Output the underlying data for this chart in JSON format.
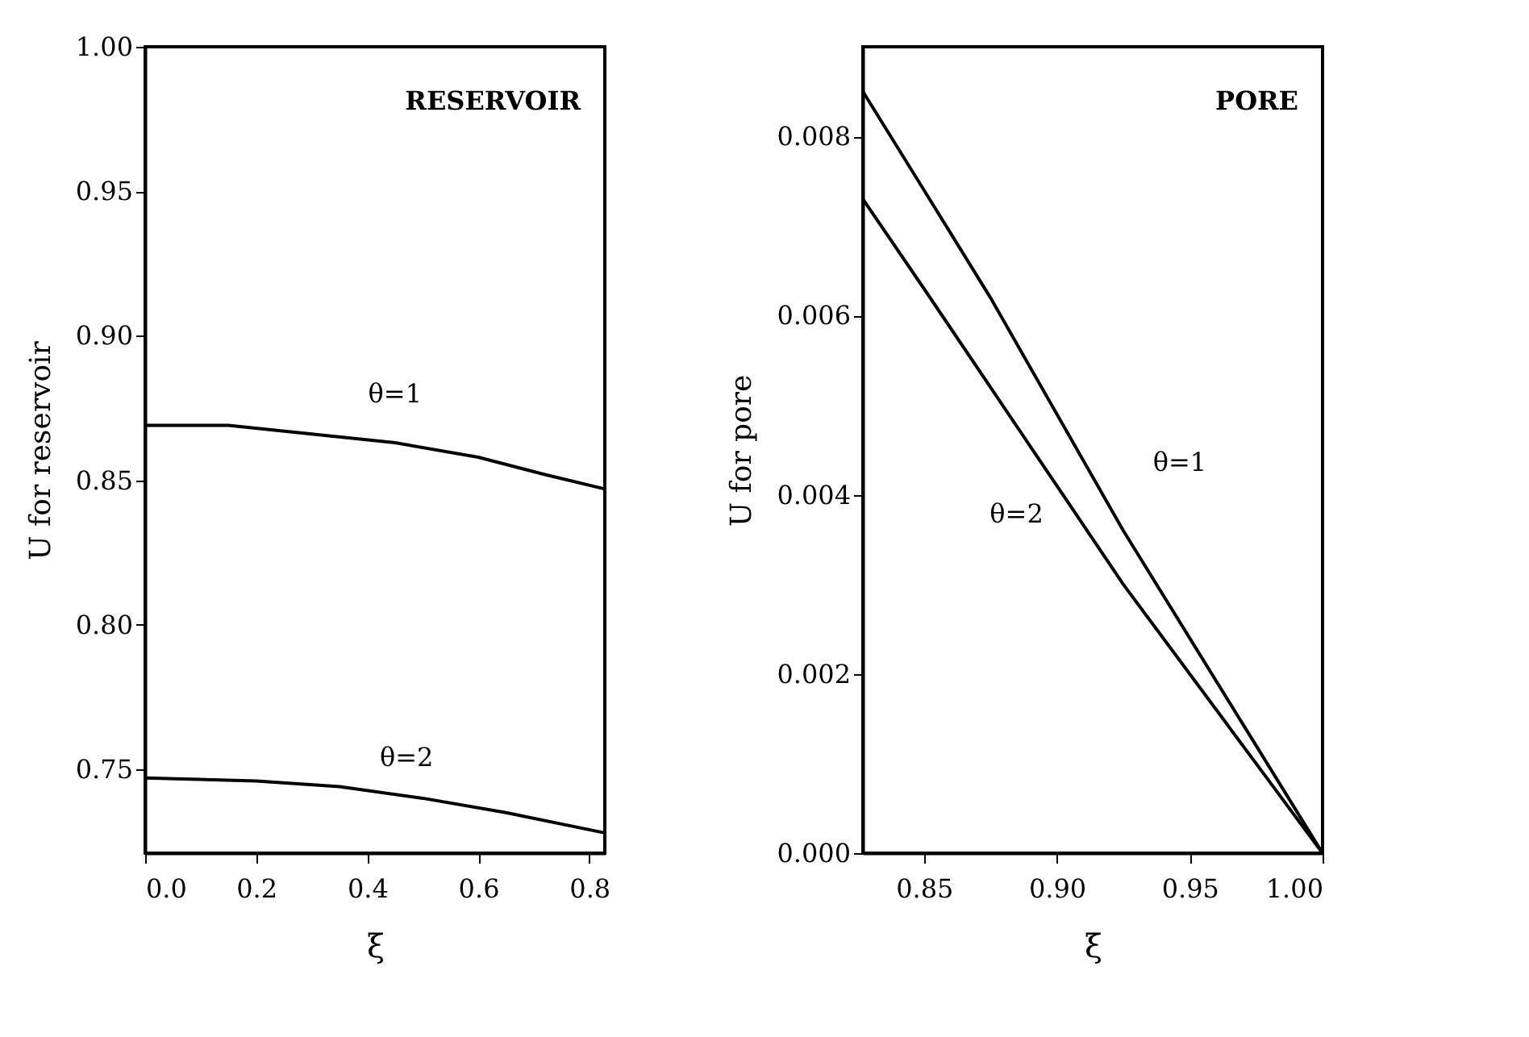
{
  "chart_data": [
    {
      "type": "line",
      "xlabel": "ξ",
      "ylabel": "U for reservoir",
      "xlim": [
        0,
        0.828
      ],
      "ylim": [
        0.721,
        1.0
      ],
      "xticks": [
        {
          "value": 0,
          "label": "0.0"
        },
        {
          "value": 0.2,
          "label": "0.2"
        },
        {
          "value": 0.4,
          "label": "0.4"
        },
        {
          "value": 0.6,
          "label": "0.6"
        },
        {
          "value": 0.8,
          "label": "0.8"
        }
      ],
      "yticks": [
        {
          "value": 0.75,
          "label": "0.75"
        },
        {
          "value": 0.8,
          "label": "0.80"
        },
        {
          "value": 0.85,
          "label": "0.85"
        },
        {
          "value": 0.9,
          "label": "0.90"
        },
        {
          "value": 0.95,
          "label": "0.95"
        },
        {
          "value": 1.0,
          "label": "1.00"
        }
      ],
      "grid": false,
      "marker": "none",
      "line_style": "solid",
      "series": [
        {
          "name": "θ=1",
          "color": "#000000",
          "x": [
            0,
            0.15,
            0.3,
            0.45,
            0.6,
            0.72,
            0.828
          ],
          "values": [
            0.869,
            0.869,
            0.866,
            0.863,
            0.858,
            0.852,
            0.847
          ]
        },
        {
          "name": "θ=2",
          "color": "#000000",
          "x": [
            0,
            0.2,
            0.35,
            0.5,
            0.65,
            0.828
          ],
          "values": [
            0.747,
            0.746,
            0.744,
            0.74,
            0.735,
            0.728
          ]
        }
      ],
      "annotations": [
        "RESERVOIR"
      ]
    },
    {
      "type": "line",
      "xlabel": "ξ",
      "ylabel": "U for pore",
      "xlim": [
        0.827,
        1.0
      ],
      "ylim": [
        0,
        0.009
      ],
      "xticks": [
        {
          "value": 0.85,
          "label": "0.85"
        },
        {
          "value": 0.9,
          "label": "0.90"
        },
        {
          "value": 0.95,
          "label": "0.95"
        },
        {
          "value": 1.0,
          "label": "1.00"
        }
      ],
      "yticks": [
        {
          "value": 0,
          "label": "0.000"
        },
        {
          "value": 0.002,
          "label": "0.002"
        },
        {
          "value": 0.004,
          "label": "0.004"
        },
        {
          "value": 0.006,
          "label": "0.006"
        },
        {
          "value": 0.008,
          "label": "0.008"
        }
      ],
      "grid": false,
      "marker": "none",
      "line_style": "solid",
      "series": [
        {
          "name": "θ=1",
          "color": "#000000",
          "x": [
            0.827,
            0.85,
            0.875,
            0.9,
            0.925,
            0.95,
            0.975,
            1.0
          ],
          "values": [
            0.0085,
            0.0074,
            0.0062,
            0.0049,
            0.0036,
            0.0024,
            0.0012,
            0
          ]
        },
        {
          "name": "θ=2",
          "color": "#000000",
          "x": [
            0.827,
            0.85,
            0.875,
            0.9,
            0.925,
            0.95,
            0.975,
            1.0
          ],
          "values": [
            0.0073,
            0.0063,
            0.0052,
            0.0041,
            0.003,
            0.002,
            0.001,
            0
          ]
        }
      ],
      "annotations": [
        "PORE"
      ]
    }
  ]
}
